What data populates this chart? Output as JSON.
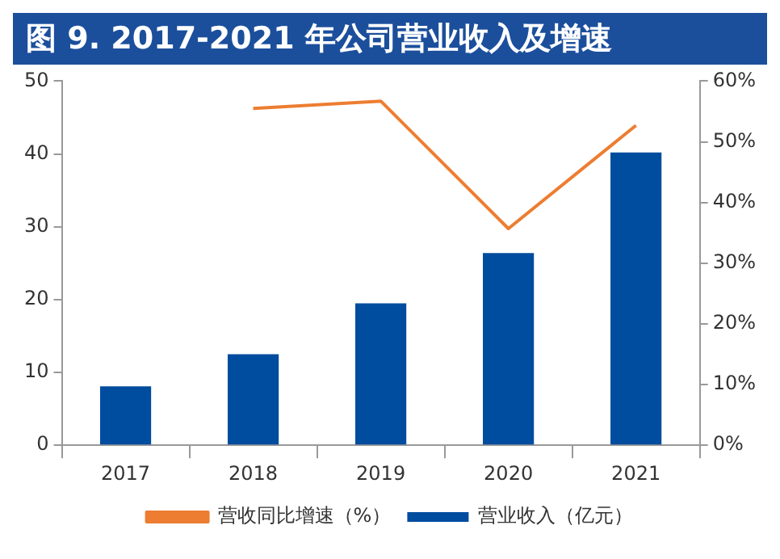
{
  "chart_data": {
    "type": "bar",
    "title": "图 9. 2017-2021 年公司营业收入及增速",
    "categories": [
      "2017",
      "2018",
      "2019",
      "2020",
      "2021"
    ],
    "series": [
      {
        "name": "营业收入（亿元）",
        "color": "#004c9e",
        "values": [
          8.1,
          12.5,
          19.5,
          26.4,
          40.2
        ]
      },
      {
        "name": "营收同比增速（%）",
        "type": "line",
        "axis": "y2",
        "color": "#ed7d31",
        "values": [
          null,
          55.5,
          56.7,
          35.7,
          52.7
        ],
        "marker": "none"
      }
    ],
    "ylim": [
      0,
      50
    ],
    "yticks": [
      0,
      10,
      20,
      30,
      40,
      50
    ],
    "y2lim": [
      0,
      60
    ],
    "y2ticks": [
      {
        "value": 0,
        "label": "0%"
      },
      {
        "value": 10,
        "label": "10%"
      },
      {
        "value": 20,
        "label": "20%"
      },
      {
        "value": 30,
        "label": "30%"
      },
      {
        "value": 40,
        "label": "40%"
      },
      {
        "value": 50,
        "label": "50%"
      },
      {
        "value": 60,
        "label": "60%"
      }
    ],
    "grid": false,
    "legend": "bottom"
  }
}
